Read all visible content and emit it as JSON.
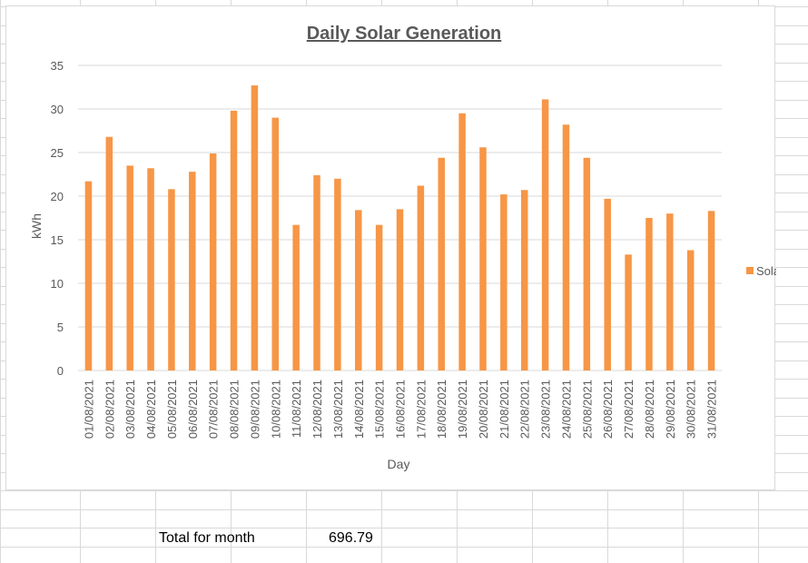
{
  "spreadsheet": {
    "total_label": "Total for month",
    "total_value": "696.79"
  },
  "colors": {
    "bar": "#F79646",
    "grid": "#d9d9d9",
    "text": "#595959"
  },
  "chart_data": {
    "type": "bar",
    "title": "Daily Solar Generation",
    "xlabel": "Day",
    "ylabel": "kWh",
    "ylim": [
      0,
      35
    ],
    "yticks": [
      0,
      5,
      10,
      15,
      20,
      25,
      30,
      35
    ],
    "grid": true,
    "legend_position": "right",
    "categories": [
      "01/08/2021",
      "02/08/2021",
      "03/08/2021",
      "04/08/2021",
      "05/08/2021",
      "06/08/2021",
      "07/08/2021",
      "08/08/2021",
      "09/08/2021",
      "10/08/2021",
      "11/08/2021",
      "12/08/2021",
      "13/08/2021",
      "14/08/2021",
      "15/08/2021",
      "16/08/2021",
      "17/08/2021",
      "18/08/2021",
      "19/08/2021",
      "20/08/2021",
      "21/08/2021",
      "22/08/2021",
      "23/08/2021",
      "24/08/2021",
      "25/08/2021",
      "26/08/2021",
      "27/08/2021",
      "28/08/2021",
      "29/08/2021",
      "30/08/2021",
      "31/08/2021"
    ],
    "series": [
      {
        "name": "Solar",
        "values": [
          21.7,
          26.8,
          23.5,
          23.2,
          20.8,
          22.8,
          24.9,
          29.8,
          32.7,
          29.0,
          16.7,
          22.4,
          22.0,
          18.4,
          16.7,
          18.5,
          21.2,
          24.4,
          29.5,
          25.6,
          20.2,
          20.7,
          31.1,
          28.2,
          24.4,
          19.7,
          13.3,
          17.5,
          18.0,
          13.8,
          18.3
        ]
      }
    ]
  }
}
